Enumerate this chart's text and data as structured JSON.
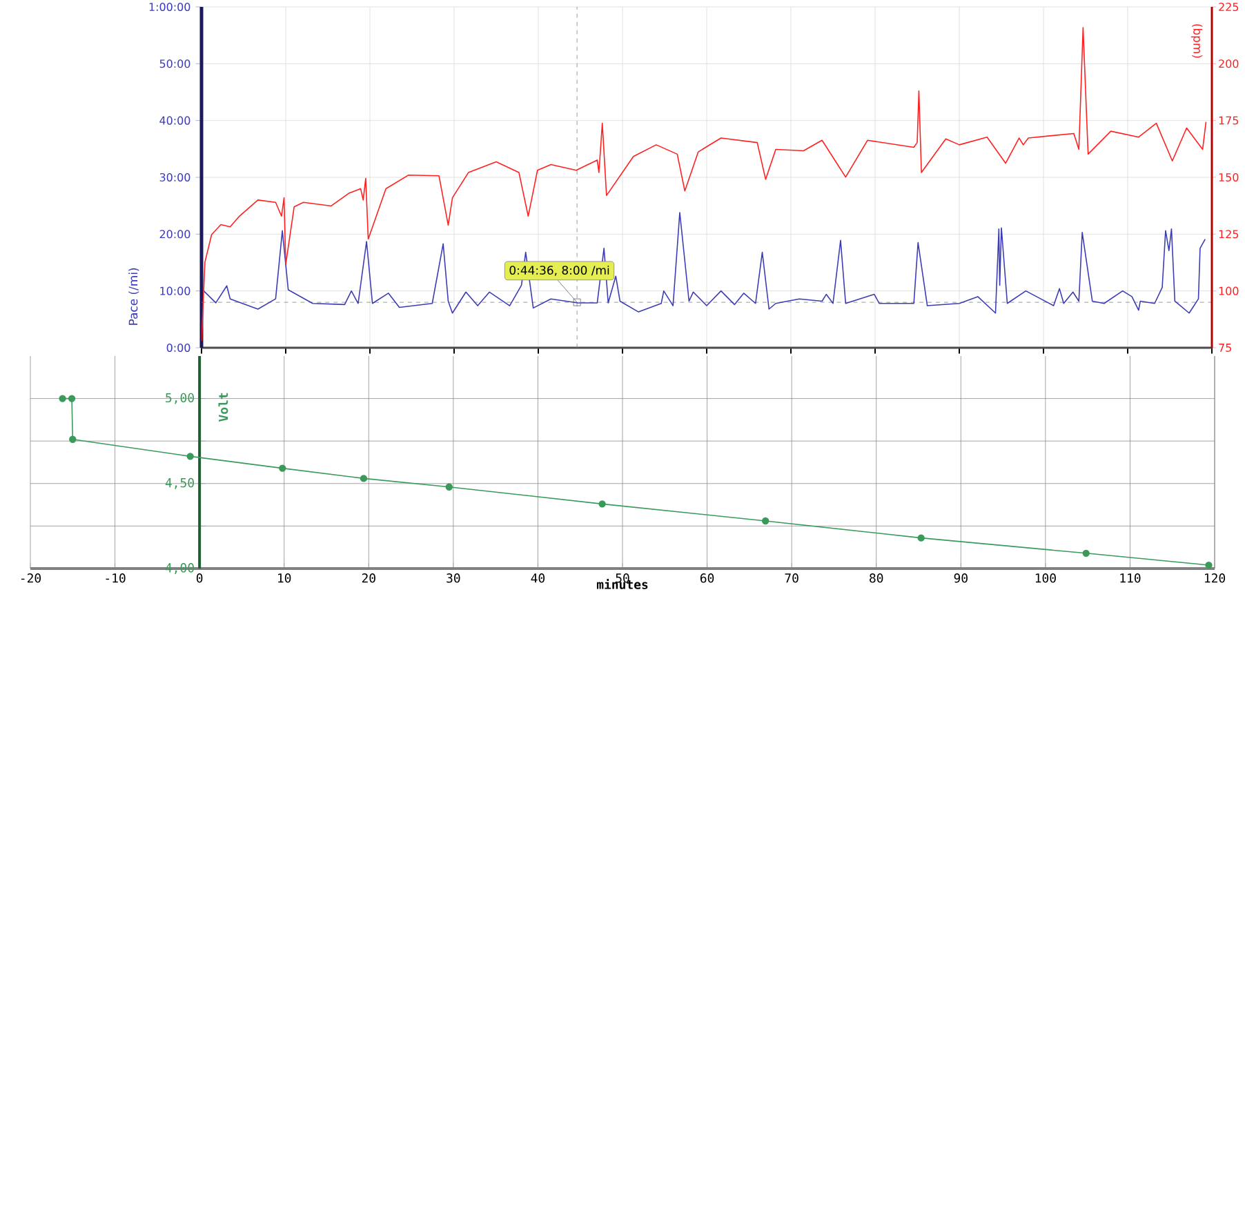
{
  "chart_data": [
    {
      "type": "line",
      "xlim": [
        0,
        120
      ],
      "xticks": [
        0,
        10,
        20,
        30,
        40,
        50,
        60,
        70,
        80,
        90,
        100,
        110,
        120
      ],
      "tick_labels": "y",
      "ylabel": "Pace (/mi)",
      "y2label": "(bpm)",
      "ylim": [
        0,
        60
      ],
      "yticks": [
        {
          "value": 0,
          "label": "0:00"
        },
        {
          "value": 10,
          "label": "10:00"
        },
        {
          "value": 20,
          "label": "20:00"
        },
        {
          "value": 30,
          "label": "30:00"
        },
        {
          "value": 40,
          "label": "40:00"
        },
        {
          "value": 50,
          "label": "50:00"
        },
        {
          "value": 60,
          "label": "1:00:00"
        }
      ],
      "y2lim": [
        75,
        225
      ],
      "y2ticks": [
        75,
        100,
        125,
        150,
        175,
        200,
        225
      ],
      "grid": true,
      "marker": "none",
      "line_style": "solid",
      "ref_lines": [
        {
          "axis": "x",
          "value": 44.6,
          "color": "#808080",
          "line_style": "dashed"
        },
        {
          "axis": "y",
          "value": 8,
          "color": "#808080",
          "line_style": "dashed"
        }
      ],
      "annotations": [
        {
          "text": "0:44:36, 8:00 /mi",
          "x": 44.6,
          "y": 8
        }
      ],
      "series": [
        {
          "color": "#3c3cb4",
          "x": [
            0.2,
            1.7,
            3.0,
            3.4,
            6.7,
            8.8,
            9.6,
            10.3,
            13.2,
            17.0,
            17.8,
            18.6,
            19.6,
            20.3,
            22.2,
            23.5,
            27.4,
            28.7,
            29.3,
            29.8,
            31.4,
            32.8,
            34.2,
            36.6,
            38.0,
            38.5,
            39.4,
            41.5,
            44.7,
            47.0,
            47.8,
            48.3,
            49.2,
            49.7,
            51.9,
            54.6,
            54.9,
            56.0,
            56.8,
            57.9,
            58.4,
            60.0,
            61.7,
            63.3,
            64.4,
            65.8,
            66.6,
            67.4,
            68.2,
            71.0,
            73.7,
            74.2,
            75.0,
            75.9,
            76.5,
            79.9,
            80.5,
            84.6,
            85.1,
            86.2,
            90.0,
            92.2,
            94.3,
            94.7,
            94.8,
            95.0,
            95.7,
            97.9,
            101.2,
            101.9,
            102.4,
            103.5,
            104.2,
            104.6,
            105.8,
            107.2,
            109.4,
            110.5,
            111.3,
            111.5,
            113.2,
            114.1,
            114.5,
            114.9,
            115.2,
            115.6,
            117.3,
            118.4,
            118.6,
            119.2
          ],
          "values": [
            10.1,
            7.9,
            10.9,
            8.6,
            6.8,
            8.6,
            20.6,
            10.2,
            7.8,
            7.6,
            10.0,
            7.8,
            18.7,
            7.8,
            9.6,
            7.1,
            7.8,
            18.3,
            8.2,
            6.1,
            9.8,
            7.4,
            9.8,
            7.4,
            11.0,
            16.8,
            7.0,
            8.6,
            7.9,
            7.9,
            17.5,
            7.9,
            12.6,
            8.2,
            6.3,
            7.8,
            10.0,
            7.4,
            23.8,
            8.2,
            9.8,
            7.4,
            10.0,
            7.6,
            9.6,
            7.8,
            16.8,
            6.8,
            7.8,
            8.6,
            8.2,
            9.4,
            7.8,
            18.9,
            7.8,
            9.4,
            7.8,
            7.8,
            18.5,
            7.4,
            7.8,
            9.0,
            6.1,
            20.9,
            11.0,
            21.1,
            7.8,
            10.0,
            7.4,
            10.4,
            7.8,
            9.8,
            8.2,
            20.3,
            8.2,
            7.8,
            10.0,
            9.0,
            6.6,
            8.2,
            7.8,
            10.6,
            20.6,
            17.1,
            20.9,
            8.2,
            6.1,
            8.6,
            17.5,
            19.1
          ]
        },
        {
          "color": "#ff2020",
          "axis": "y2",
          "x": [
            0.0,
            0.4,
            1.2,
            2.3,
            3.4,
            4.5,
            6.7,
            8.8,
            9.5,
            9.8,
            10.0,
            11.0,
            12.1,
            15.4,
            17.5,
            18.9,
            19.2,
            19.5,
            19.8,
            21.9,
            24.6,
            28.2,
            29.3,
            29.8,
            31.7,
            35.0,
            37.7,
            38.8,
            39.9,
            41.5,
            44.5,
            47.0,
            47.2,
            47.6,
            48.1,
            51.3,
            54.0,
            56.5,
            57.4,
            59.0,
            61.7,
            66.0,
            67.0,
            68.2,
            71.5,
            73.7,
            76.5,
            79.1,
            84.6,
            85.0,
            85.2,
            85.5,
            88.4,
            90.0,
            93.3,
            95.5,
            97.1,
            97.6,
            98.2,
            103.6,
            104.2,
            104.7,
            105.3,
            108.0,
            111.3,
            113.4,
            115.3,
            117.0,
            118.9,
            119.3
          ],
          "values": [
            78,
            112.6,
            124.8,
            129.2,
            128.2,
            132.9,
            140,
            139,
            132.9,
            141,
            111.6,
            137,
            139,
            137.4,
            143,
            145,
            140,
            149.5,
            122.8,
            145,
            151,
            150.7,
            128.9,
            141,
            152.1,
            156.8,
            152.1,
            132.9,
            153.1,
            155.6,
            153.1,
            157.6,
            152.1,
            173.8,
            142,
            159.2,
            164.3,
            160.2,
            144,
            161.2,
            167.3,
            165.3,
            149.1,
            162.3,
            161.7,
            166.3,
            150.1,
            166.3,
            163.2,
            165.3,
            188,
            152.1,
            166.9,
            164.3,
            167.7,
            156.2,
            167.3,
            164.3,
            167.3,
            169.3,
            162.3,
            215.9,
            160.2,
            170.3,
            167.7,
            173.8,
            157.2,
            171.7,
            162.3,
            174.4
          ]
        }
      ]
    },
    {
      "type": "line",
      "xlabel": "minutes",
      "ylabel": "Volt",
      "xlim": [
        -20,
        120
      ],
      "xticks": [
        -20,
        -10,
        0,
        10,
        20,
        30,
        40,
        50,
        60,
        70,
        80,
        90,
        100,
        110,
        120
      ],
      "ylim": [
        4,
        5.25
      ],
      "yticks": [
        {
          "value": 4,
          "label": "4,00"
        },
        {
          "value": 4.25,
          "label": null
        },
        {
          "value": 4.5,
          "label": "4,50"
        },
        {
          "value": 4.75,
          "label": null
        },
        {
          "value": 5,
          "label": "5,00"
        }
      ],
      "grid": true,
      "marker": "circle",
      "line_style": "solid",
      "series": [
        {
          "color": "#3a9a5a",
          "x": [
            -16.2,
            -15.1,
            -15.0,
            -1.1,
            9.8,
            19.4,
            29.5,
            47.6,
            66.9,
            85.3,
            104.8,
            119.3
          ],
          "values": [
            5.0,
            5.0,
            4.76,
            4.66,
            4.59,
            4.53,
            4.48,
            4.38,
            4.28,
            4.18,
            4.09,
            4.02
          ]
        }
      ]
    }
  ]
}
